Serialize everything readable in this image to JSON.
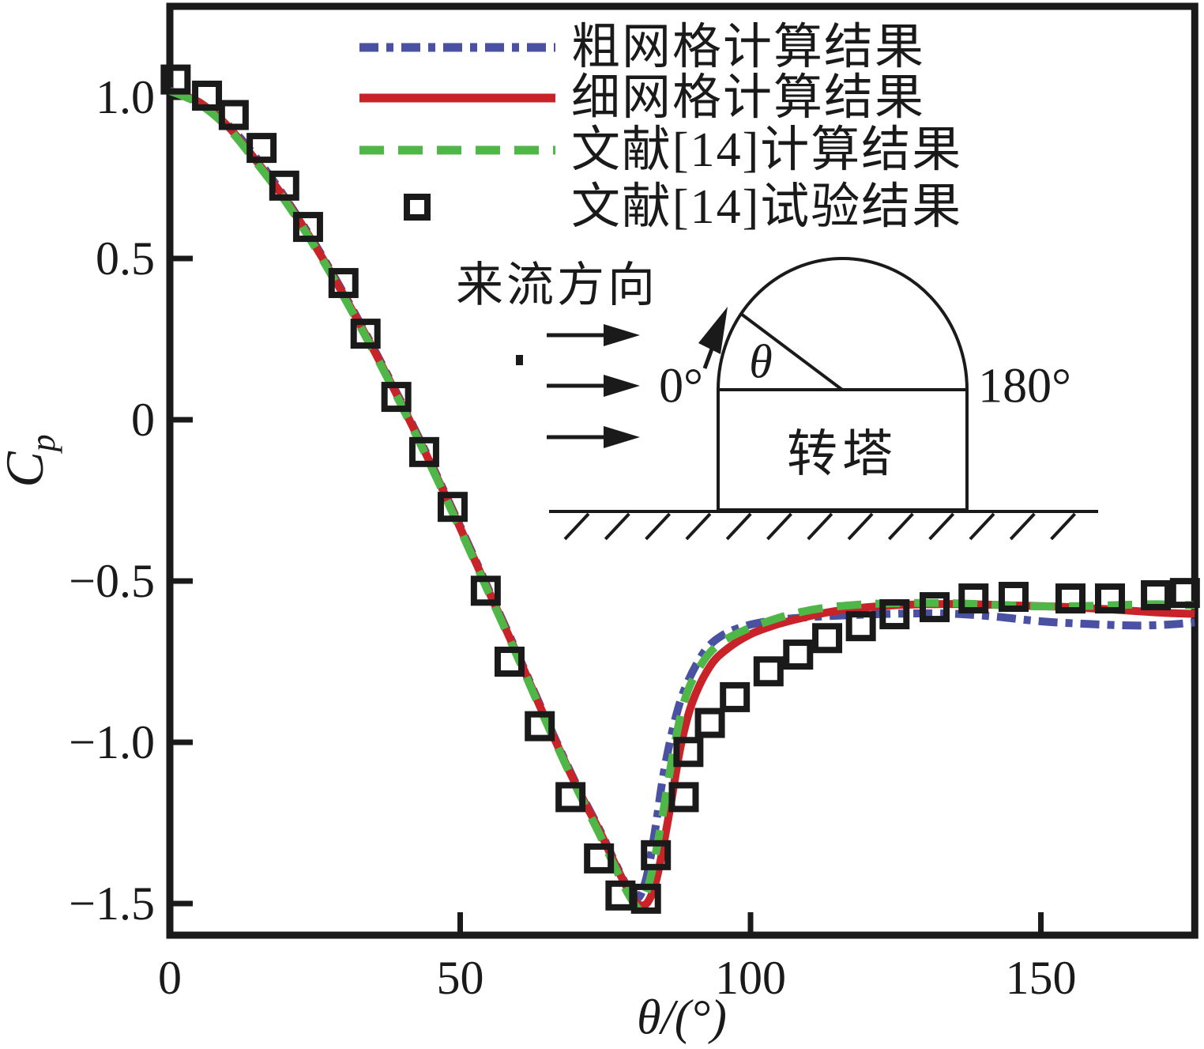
{
  "figure": {
    "background": "#ffffff",
    "line_color": "#1a1a1a",
    "legend": {
      "items": [
        {
          "key": "coarse-grid",
          "label": "粗网格计算结果",
          "style": "dashdot",
          "color": "#4a51a2"
        },
        {
          "key": "fine-grid",
          "label": "细网格计算结果",
          "style": "solid",
          "color": "#c9232a"
        },
        {
          "key": "ref14-sim",
          "label": "文献[14]计算结果",
          "style": "dashed",
          "color": "#4eb748"
        },
        {
          "key": "ref14-exp",
          "label": "文献[14]试验结果",
          "style": "square-marker",
          "color": "#1a1a1a"
        }
      ]
    },
    "axes": {
      "ylabel_base": "C",
      "ylabel_sub": "p",
      "xlabel": "θ/(°)"
    },
    "inset": {
      "flow_label": "来流方向",
      "angle_left": "0°",
      "angle_right": "180°",
      "theta_label": "θ",
      "turret_label": "转塔"
    }
  },
  "chart_data": {
    "type": "line",
    "title": "",
    "xlabel": "θ/(°)",
    "ylabel": "Cp",
    "grid": false,
    "legend_position": "top-center",
    "xlim": [
      0,
      176.5
    ],
    "ylim": [
      -1.598,
      1.282
    ],
    "xticks": [
      50,
      100,
      150
    ],
    "xtick_labels_all": [
      "0",
      "50",
      "100",
      "150"
    ],
    "xtick_label_positions": [
      0,
      50,
      100,
      150
    ],
    "yticks": [
      1.0,
      0.5,
      0,
      -0.5,
      -1.0,
      -1.5
    ],
    "ytick_labels": [
      "1.0",
      "0.5",
      "0",
      "−0.5",
      "−1.0",
      "−1.5"
    ],
    "series": [
      {
        "key": "coarse-grid",
        "name": "粗网格计算结果",
        "type": "line",
        "dash": "dashdot",
        "color": "#4a51a2",
        "points": [
          [
            0,
            1.02
          ],
          [
            5,
            0.985
          ],
          [
            10,
            0.915
          ],
          [
            15,
            0.81
          ],
          [
            20,
            0.685
          ],
          [
            25,
            0.545
          ],
          [
            30,
            0.39
          ],
          [
            35,
            0.225
          ],
          [
            40,
            0.05
          ],
          [
            45,
            -0.135
          ],
          [
            50,
            -0.33
          ],
          [
            55,
            -0.53
          ],
          [
            60,
            -0.73
          ],
          [
            65,
            -0.935
          ],
          [
            70,
            -1.13
          ],
          [
            74,
            -1.27
          ],
          [
            77,
            -1.385
          ],
          [
            79,
            -1.455
          ],
          [
            80.5,
            -1.485
          ],
          [
            82,
            -1.425
          ],
          [
            83.5,
            -1.28
          ],
          [
            85,
            -1.1
          ],
          [
            87,
            -0.93
          ],
          [
            89,
            -0.82
          ],
          [
            92,
            -0.72
          ],
          [
            95,
            -0.67
          ],
          [
            99,
            -0.64
          ],
          [
            104,
            -0.622
          ],
          [
            110,
            -0.612
          ],
          [
            118,
            -0.605
          ],
          [
            126,
            -0.601
          ],
          [
            134,
            -0.601
          ],
          [
            142,
            -0.61
          ],
          [
            150,
            -0.625
          ],
          [
            158,
            -0.633
          ],
          [
            166,
            -0.638
          ],
          [
            172,
            -0.635
          ],
          [
            176.5,
            -0.628
          ]
        ]
      },
      {
        "key": "fine-grid",
        "name": "细网格计算结果",
        "type": "line",
        "dash": "solid",
        "color": "#c9232a",
        "points": [
          [
            0,
            1.02
          ],
          [
            5,
            0.985
          ],
          [
            10,
            0.91
          ],
          [
            15,
            0.8
          ],
          [
            20,
            0.68
          ],
          [
            25,
            0.54
          ],
          [
            30,
            0.385
          ],
          [
            35,
            0.22
          ],
          [
            40,
            0.045
          ],
          [
            45,
            -0.14
          ],
          [
            50,
            -0.335
          ],
          [
            55,
            -0.535
          ],
          [
            60,
            -0.735
          ],
          [
            65,
            -0.94
          ],
          [
            70,
            -1.135
          ],
          [
            74,
            -1.275
          ],
          [
            77,
            -1.39
          ],
          [
            79.5,
            -1.475
          ],
          [
            81,
            -1.505
          ],
          [
            82.5,
            -1.49
          ],
          [
            84,
            -1.41
          ],
          [
            86,
            -1.22
          ],
          [
            88,
            -1.01
          ],
          [
            90,
            -0.875
          ],
          [
            93,
            -0.765
          ],
          [
            96,
            -0.71
          ],
          [
            100,
            -0.665
          ],
          [
            104,
            -0.638
          ],
          [
            108,
            -0.618
          ],
          [
            113,
            -0.598
          ],
          [
            118,
            -0.585
          ],
          [
            124,
            -0.576
          ],
          [
            130,
            -0.572
          ],
          [
            138,
            -0.572
          ],
          [
            146,
            -0.576
          ],
          [
            154,
            -0.58
          ],
          [
            162,
            -0.588
          ],
          [
            168,
            -0.595
          ],
          [
            173,
            -0.6
          ],
          [
            176.5,
            -0.602
          ]
        ]
      },
      {
        "key": "ref14-sim",
        "name": "文献[14]计算结果",
        "type": "line",
        "dash": "dashed",
        "color": "#4eb748",
        "points": [
          [
            0,
            1.02
          ],
          [
            5,
            0.98
          ],
          [
            10,
            0.905
          ],
          [
            15,
            0.795
          ],
          [
            20,
            0.675
          ],
          [
            25,
            0.535
          ],
          [
            30,
            0.38
          ],
          [
            35,
            0.215
          ],
          [
            40,
            0.04
          ],
          [
            45,
            -0.145
          ],
          [
            50,
            -0.34
          ],
          [
            55,
            -0.54
          ],
          [
            60,
            -0.74
          ],
          [
            65,
            -0.945
          ],
          [
            70,
            -1.14
          ],
          [
            74,
            -1.285
          ],
          [
            77,
            -1.4
          ],
          [
            79,
            -1.472
          ],
          [
            80.5,
            -1.505
          ],
          [
            82,
            -1.468
          ],
          [
            83.5,
            -1.36
          ],
          [
            85,
            -1.21
          ],
          [
            87,
            -1.0
          ],
          [
            89,
            -0.85
          ],
          [
            92,
            -0.745
          ],
          [
            95,
            -0.69
          ],
          [
            99,
            -0.652
          ],
          [
            103,
            -0.625
          ],
          [
            107,
            -0.603
          ],
          [
            112,
            -0.585
          ],
          [
            118,
            -0.574
          ],
          [
            124,
            -0.569
          ],
          [
            132,
            -0.568
          ],
          [
            140,
            -0.572
          ],
          [
            148,
            -0.578
          ],
          [
            156,
            -0.578
          ],
          [
            164,
            -0.574
          ],
          [
            170,
            -0.572
          ],
          [
            176.5,
            -0.575
          ]
        ]
      },
      {
        "key": "ref14-exp",
        "name": "文献[14]试验结果",
        "type": "scatter",
        "marker": "open-square",
        "color": "#1a1a1a",
        "points": [
          [
            1,
            1.055
          ],
          [
            6.4,
            1.005
          ],
          [
            11,
            0.945
          ],
          [
            15.8,
            0.843
          ],
          [
            19.7,
            0.726
          ],
          [
            23.8,
            0.598
          ],
          [
            29.9,
            0.424
          ],
          [
            33.7,
            0.267
          ],
          [
            39,
            0.071
          ],
          [
            43.8,
            -0.1
          ],
          [
            48.7,
            -0.27
          ],
          [
            54.4,
            -0.53
          ],
          [
            58.5,
            -0.75
          ],
          [
            63.7,
            -0.95
          ],
          [
            69,
            -1.17
          ],
          [
            73.9,
            -1.36
          ],
          [
            77.6,
            -1.475
          ],
          [
            82,
            -1.485
          ],
          [
            83.7,
            -1.35
          ],
          [
            88.5,
            -1.17
          ],
          [
            89.3,
            -1.03
          ],
          [
            93,
            -0.94
          ],
          [
            97.3,
            -0.86
          ],
          [
            103.1,
            -0.78
          ],
          [
            108.2,
            -0.728
          ],
          [
            113.2,
            -0.677
          ],
          [
            119,
            -0.64
          ],
          [
            124.8,
            -0.603
          ],
          [
            131.7,
            -0.581
          ],
          [
            138.4,
            -0.554
          ],
          [
            145.3,
            -0.549
          ],
          [
            155.1,
            -0.554
          ],
          [
            161.9,
            -0.554
          ],
          [
            169.8,
            -0.544
          ],
          [
            174.8,
            -0.537
          ]
        ]
      }
    ],
    "inset_description": "来流方向 arrows toward turret dome; θ measured from 0° (upstream) to 180° (downstream) over dome; 转塔 = turret on ground"
  }
}
